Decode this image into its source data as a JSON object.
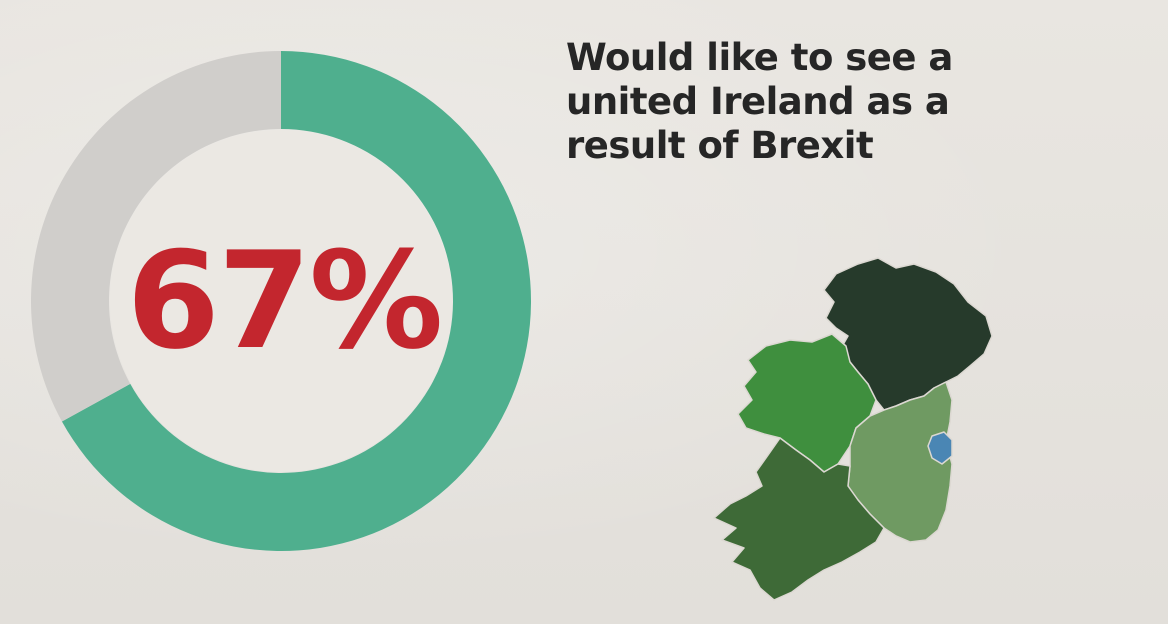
{
  "chart_data": {
    "type": "pie",
    "variant": "donut",
    "value_label": "67%",
    "slices": [
      {
        "value": 67,
        "color": "#4faf8e"
      },
      {
        "value": 33,
        "color": "#d0cecb"
      }
    ],
    "caption": "Would like to see a united Ireland as a result of Brexit"
  },
  "map": {
    "icon": "ireland-map-icon",
    "colors": {
      "north": "#263a2b",
      "west": "#3f8f3e",
      "east": "#6f9a62",
      "south": "#3e6a37",
      "dublin": "#4a86b4"
    }
  }
}
